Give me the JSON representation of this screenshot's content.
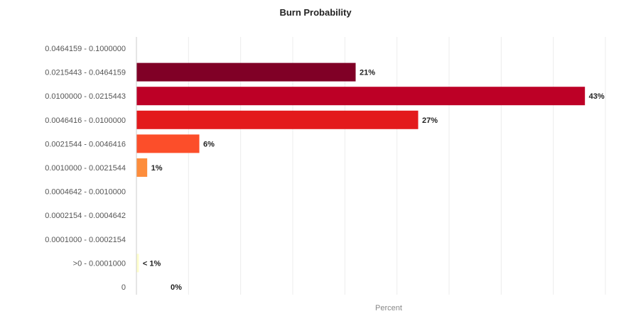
{
  "chart_data": {
    "type": "bar",
    "orientation": "horizontal",
    "title": "Burn Probability",
    "xlabel": "Percent",
    "ylabel": "",
    "categories": [
      "0.0464159 - 0.1000000",
      "0.0215443 - 0.0464159",
      "0.0100000 - 0.0215443",
      "0.0046416 - 0.0100000",
      "0.0021544 - 0.0046416",
      "0.0010000 - 0.0021544",
      "0.0004642 - 0.0010000",
      "0.0002154 - 0.0004642",
      "0.0001000 - 0.0002154",
      ">0 - 0.0001000",
      "0"
    ],
    "values": [
      0,
      21,
      43,
      27,
      6,
      1,
      0,
      0,
      0,
      0.2,
      0
    ],
    "data_labels": [
      "",
      "21%",
      "43%",
      "27%",
      "6%",
      "1%",
      "",
      "",
      "",
      "< 1%",
      "0%"
    ],
    "colors": [
      "#800026",
      "#800026",
      "#bd0026",
      "#e31a1c",
      "#fc4e2a",
      "#fd8d3c",
      "#feb24c",
      "#fed976",
      "#ffeda0",
      "#ffffcc",
      "#ffffcc"
    ],
    "xlim": [
      0,
      45
    ],
    "grid": true,
    "legend": "none"
  }
}
